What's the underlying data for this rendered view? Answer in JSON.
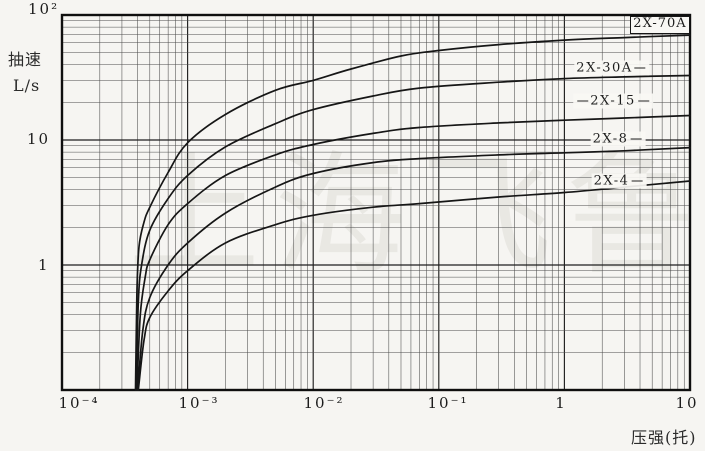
{
  "figure_title": "",
  "y_axis": {
    "title_line1": "抽速",
    "title_line2": "L/s"
  },
  "x_axis": {
    "title": "压强(托)"
  },
  "watermark": "上海飞鲁",
  "curve_labels": [
    {
      "text": "2X-70A"
    },
    {
      "text": "2X-30A"
    },
    {
      "text": "2X-15"
    },
    {
      "text": "2X-8"
    },
    {
      "text": "2X-4"
    }
  ],
  "chart_data": {
    "type": "line",
    "title": "",
    "xlabel": "压强(托)",
    "ylabel": "抽速 L/s",
    "x_scale": "log",
    "y_scale": "log",
    "xlim": [
      0.0001,
      10
    ],
    "ylim": [
      0.1,
      100
    ],
    "grid": "full log-log grid with minor decade lines",
    "legend_position": "labels placed on curves at right side",
    "line_color": "#161616",
    "x_ticks": [
      {
        "value": 0.0001,
        "label": "10⁻⁴"
      },
      {
        "value": 0.001,
        "label": "10⁻³"
      },
      {
        "value": 0.01,
        "label": "10⁻²"
      },
      {
        "value": 0.1,
        "label": "10⁻¹"
      },
      {
        "value": 1,
        "label": "1"
      },
      {
        "value": 10,
        "label": "10"
      }
    ],
    "y_ticks": [
      {
        "value": 100,
        "label": "10²"
      },
      {
        "value": 10,
        "label": "10"
      },
      {
        "value": 1,
        "label": "1"
      }
    ],
    "series": [
      {
        "name": "2X-70A",
        "points": [
          [
            0.000385,
            0.1
          ],
          [
            0.000395,
            0.6
          ],
          [
            0.00041,
            1.4
          ],
          [
            0.00045,
            2.2
          ],
          [
            0.0005,
            2.9
          ],
          [
            0.0007,
            5.5
          ],
          [
            0.001,
            9.5
          ],
          [
            0.002,
            16
          ],
          [
            0.005,
            25
          ],
          [
            0.01,
            30
          ],
          [
            0.02,
            37
          ],
          [
            0.05,
            47
          ],
          [
            0.1,
            52
          ],
          [
            0.3,
            58
          ],
          [
            1,
            63
          ],
          [
            3,
            66
          ],
          [
            10,
            69
          ]
        ]
      },
      {
        "name": "2X-30A",
        "points": [
          [
            0.00039,
            0.1
          ],
          [
            0.000405,
            0.5
          ],
          [
            0.00043,
            1.0
          ],
          [
            0.0005,
            1.9
          ],
          [
            0.0007,
            3.4
          ],
          [
            0.001,
            5.2
          ],
          [
            0.002,
            8.8
          ],
          [
            0.005,
            13.5
          ],
          [
            0.01,
            17.5
          ],
          [
            0.03,
            22.5
          ],
          [
            0.07,
            26
          ],
          [
            0.3,
            29
          ],
          [
            1,
            31
          ],
          [
            3,
            32
          ],
          [
            10,
            32.8
          ]
        ]
      },
      {
        "name": "2X-15",
        "points": [
          [
            0.000395,
            0.1
          ],
          [
            0.00042,
            0.4
          ],
          [
            0.00046,
            0.8
          ],
          [
            0.0005,
            1.1
          ],
          [
            0.0007,
            2.1
          ],
          [
            0.001,
            3.1
          ],
          [
            0.002,
            5.2
          ],
          [
            0.005,
            7.6
          ],
          [
            0.01,
            9.2
          ],
          [
            0.03,
            11.3
          ],
          [
            0.07,
            12.6
          ],
          [
            0.3,
            13.7
          ],
          [
            1,
            14.4
          ],
          [
            3,
            15
          ],
          [
            10,
            15.7
          ]
        ]
      },
      {
        "name": "2X-8",
        "points": [
          [
            0.0004,
            0.1
          ],
          [
            0.00044,
            0.3
          ],
          [
            0.0005,
            0.55
          ],
          [
            0.0007,
            1.0
          ],
          [
            0.001,
            1.5
          ],
          [
            0.002,
            2.6
          ],
          [
            0.005,
            4.2
          ],
          [
            0.01,
            5.4
          ],
          [
            0.03,
            6.6
          ],
          [
            0.07,
            7.1
          ],
          [
            0.3,
            7.6
          ],
          [
            1,
            7.9
          ],
          [
            3,
            8.2
          ],
          [
            10,
            8.7
          ]
        ]
      },
      {
        "name": "2X-4",
        "points": [
          [
            0.000405,
            0.1
          ],
          [
            0.00045,
            0.25
          ],
          [
            0.0005,
            0.38
          ],
          [
            0.0007,
            0.62
          ],
          [
            0.001,
            0.9
          ],
          [
            0.002,
            1.5
          ],
          [
            0.005,
            2.1
          ],
          [
            0.01,
            2.5
          ],
          [
            0.03,
            2.9
          ],
          [
            0.07,
            3.1
          ],
          [
            0.3,
            3.5
          ],
          [
            1,
            3.8
          ],
          [
            3,
            4.2
          ],
          [
            10,
            4.7
          ]
        ]
      }
    ]
  }
}
